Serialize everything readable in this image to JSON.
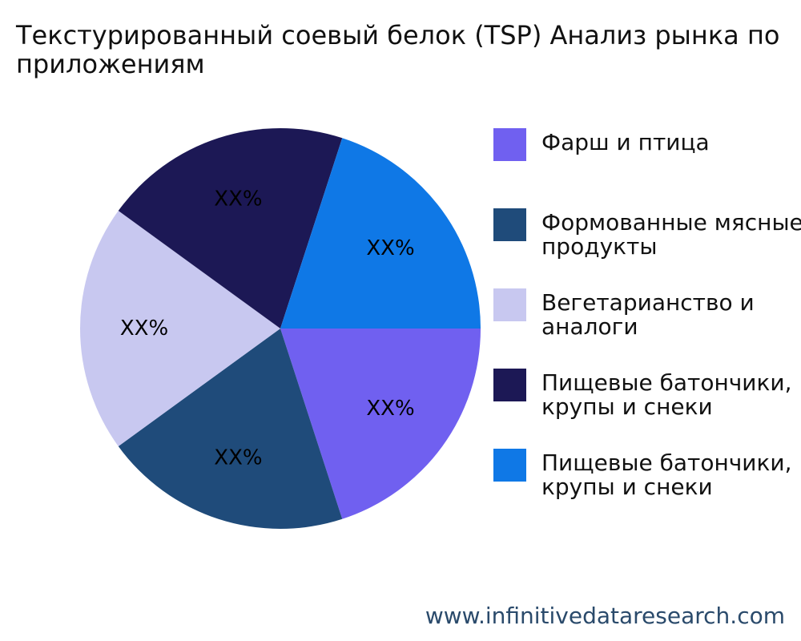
{
  "title_lines": [
    "Текстурированный соевый белок (TSP) Анализ рынка по",
    "приложениям"
  ],
  "watermark": "www.infinitivedataresearch.com",
  "legend": [
    {
      "label": "Фарш и птица",
      "color": "#7060f0"
    },
    {
      "label": "Формованные мясные\nпродукты",
      "color": "#1f4b7a"
    },
    {
      "label": "Вегетарианство и\nаналоги",
      "color": "#c8c8f0"
    },
    {
      "label": "Пищевые батончики,\nкрупы и снеки",
      "color": "#1c1855"
    },
    {
      "label": "Пищевые батончики,\nкрупы и снеки",
      "color": "#0f78e6"
    }
  ],
  "chart_data": {
    "type": "pie",
    "title": "Текстурированный соевый белок (TSP) Анализ рынка по приложениям",
    "legend_position": "right",
    "slices": [
      {
        "label": "Фарш и птица",
        "value": 20,
        "value_label": "XX%",
        "color": "#7060f0"
      },
      {
        "label": "Формованные мясные продукты",
        "value": 20,
        "value_label": "XX%",
        "color": "#1f4b7a"
      },
      {
        "label": "Вегетарианство и аналоги",
        "value": 20,
        "value_label": "XX%",
        "color": "#c8c8f0"
      },
      {
        "label": "Пищевые батончики, крупы и снеки",
        "value": 20,
        "value_label": "XX%",
        "color": "#1c1855"
      },
      {
        "label": "Пищевые батончики, крупы и снеки",
        "value": 20,
        "value_label": "XX%",
        "color": "#0f78e6"
      }
    ]
  }
}
